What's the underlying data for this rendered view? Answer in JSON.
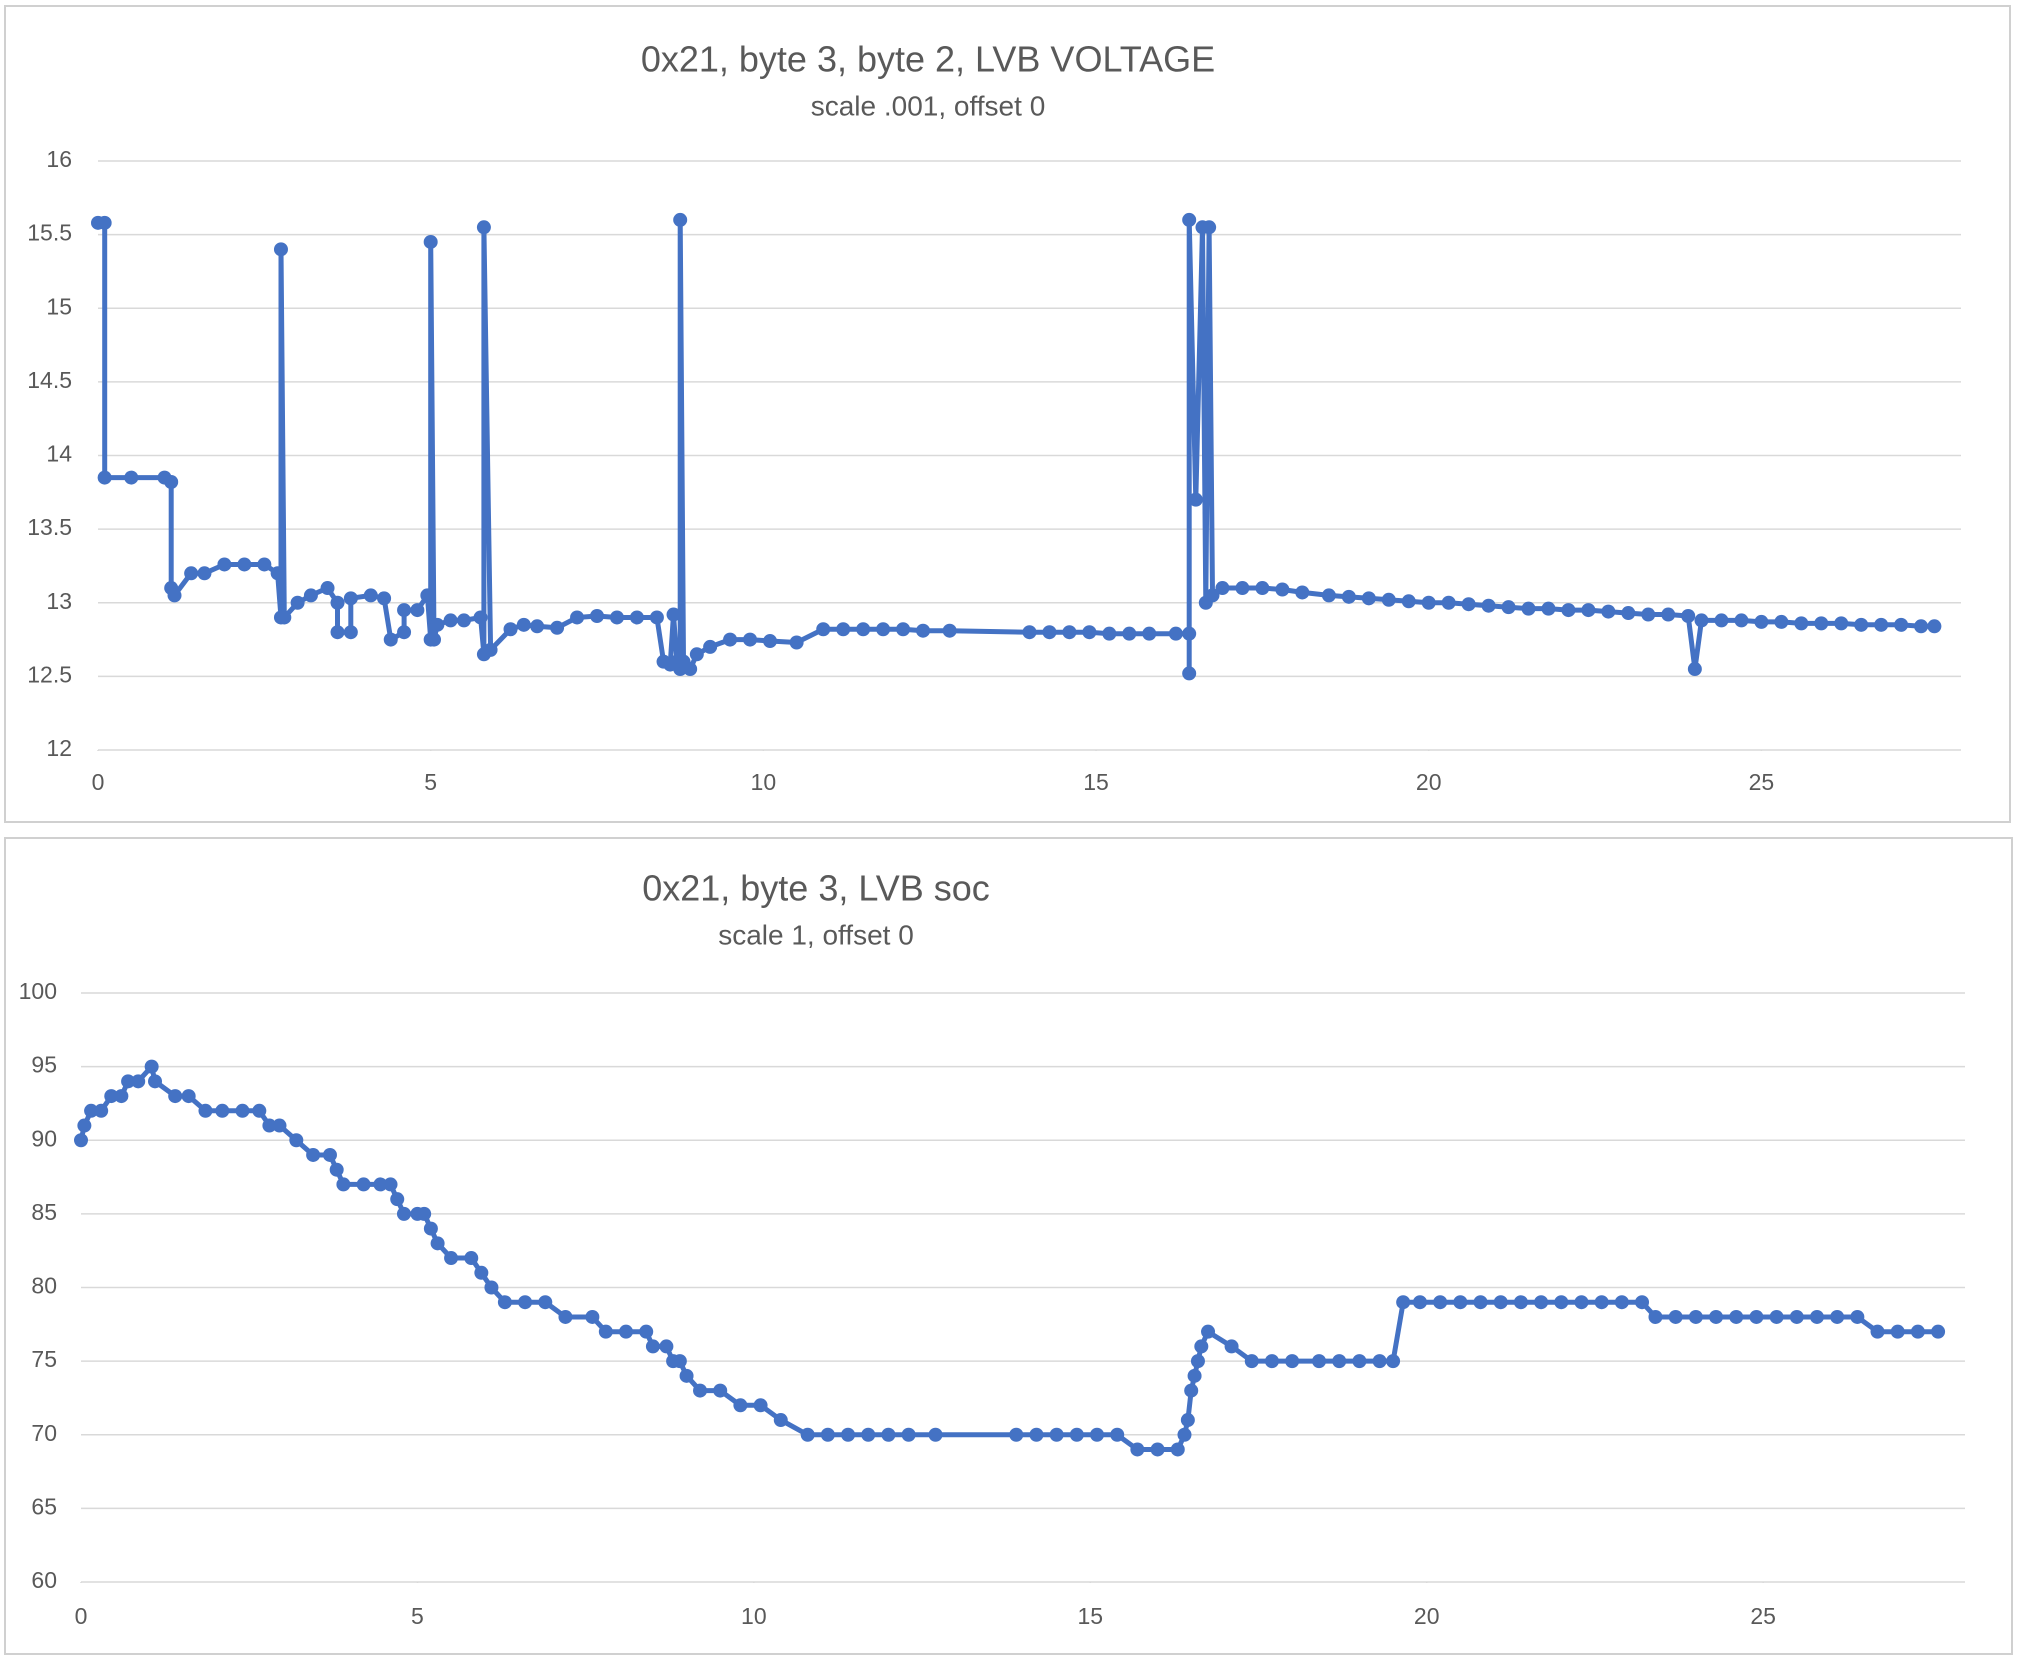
{
  "chart_data": [
    {
      "type": "line",
      "title": "0x21, byte 3, byte 2, LVB VOLTAGE",
      "subtitle": "scale .001, offset 0",
      "xlim": [
        0,
        28
      ],
      "xticks": [
        0,
        5,
        10,
        15,
        20,
        25
      ],
      "ylim": [
        12,
        16
      ],
      "yticks": [
        12,
        12.5,
        13,
        13.5,
        14,
        14.5,
        15,
        15.5,
        16
      ],
      "grid": true,
      "x": [
        0,
        0.1,
        0.1,
        0.5,
        1.0,
        1.1,
        1.1,
        1.15,
        1.4,
        1.6,
        1.9,
        2.2,
        2.5,
        2.7,
        2.75,
        2.75,
        2.8,
        3.0,
        3.2,
        3.45,
        3.6,
        3.6,
        3.8,
        3.8,
        4.1,
        4.3,
        4.4,
        4.6,
        4.6,
        4.8,
        4.95,
        5.0,
        5.0,
        5.05,
        5.1,
        5.3,
        5.5,
        5.75,
        5.8,
        5.8,
        5.9,
        6.2,
        6.4,
        6.6,
        6.9,
        7.2,
        7.5,
        7.8,
        8.1,
        8.4,
        8.5,
        8.6,
        8.65,
        8.7,
        8.75,
        8.75,
        8.8,
        8.9,
        9.0,
        9.2,
        9.5,
        9.8,
        10.1,
        10.5,
        10.9,
        11.2,
        11.5,
        11.8,
        12.1,
        12.4,
        12.8,
        14.0,
        14.3,
        14.6,
        14.9,
        15.2,
        15.5,
        15.8,
        16.2,
        16.4,
        16.4,
        16.4,
        16.5,
        16.6,
        16.65,
        16.7,
        16.75,
        16.9,
        17.2,
        17.5,
        17.8,
        18.1,
        18.5,
        18.8,
        19.1,
        19.4,
        19.7,
        20.0,
        20.3,
        20.6,
        20.9,
        21.2,
        21.5,
        21.8,
        22.1,
        22.4,
        22.7,
        23.0,
        23.3,
        23.6,
        23.9,
        24.0,
        24.1,
        24.4,
        24.7,
        25.0,
        25.3,
        25.6,
        25.9,
        26.2,
        26.5,
        26.8,
        27.1,
        27.4,
        27.6
      ],
      "series": [
        {
          "name": "LVB VOLTAGE",
          "color": "#4472c4",
          "values": [
            15.58,
            15.58,
            13.85,
            13.85,
            13.85,
            13.82,
            13.1,
            13.05,
            13.2,
            13.2,
            13.26,
            13.26,
            13.26,
            13.2,
            12.9,
            15.4,
            12.9,
            13.0,
            13.05,
            13.1,
            13.0,
            12.8,
            12.8,
            13.03,
            13.05,
            13.03,
            12.75,
            12.8,
            12.95,
            12.95,
            13.05,
            12.75,
            15.45,
            12.75,
            12.85,
            12.88,
            12.88,
            12.9,
            12.65,
            15.55,
            12.68,
            12.82,
            12.85,
            12.84,
            12.83,
            12.9,
            12.91,
            12.9,
            12.9,
            12.9,
            12.6,
            12.58,
            12.92,
            12.6,
            12.55,
            15.6,
            12.6,
            12.55,
            12.65,
            12.7,
            12.75,
            12.75,
            12.74,
            12.73,
            12.82,
            12.82,
            12.82,
            12.82,
            12.82,
            12.81,
            12.81,
            12.8,
            12.8,
            12.8,
            12.8,
            12.79,
            12.79,
            12.79,
            12.79,
            12.79,
            12.52,
            15.6,
            13.7,
            15.55,
            13.0,
            15.55,
            13.05,
            13.1,
            13.1,
            13.1,
            13.09,
            13.07,
            13.05,
            13.04,
            13.03,
            13.02,
            13.01,
            13.0,
            13.0,
            12.99,
            12.98,
            12.97,
            12.96,
            12.96,
            12.95,
            12.95,
            12.94,
            12.93,
            12.92,
            12.92,
            12.91,
            12.55,
            12.88,
            12.88,
            12.88,
            12.87,
            12.87,
            12.86,
            12.86,
            12.86,
            12.85,
            12.85,
            12.85,
            12.84,
            12.84
          ]
        }
      ]
    },
    {
      "type": "line",
      "title": "0x21, byte 3, LVB soc",
      "subtitle": "scale 1, offset 0",
      "xlim": [
        0,
        28
      ],
      "xticks": [
        0,
        5,
        10,
        15,
        20,
        25
      ],
      "ylim": [
        60,
        100
      ],
      "yticks": [
        60,
        65,
        70,
        75,
        80,
        85,
        90,
        95,
        100
      ],
      "grid": true,
      "x": [
        0,
        0.05,
        0.15,
        0.3,
        0.45,
        0.6,
        0.7,
        0.85,
        1.05,
        1.1,
        1.4,
        1.6,
        1.85,
        2.1,
        2.4,
        2.65,
        2.8,
        2.95,
        3.2,
        3.45,
        3.7,
        3.8,
        3.9,
        4.2,
        4.45,
        4.6,
        4.7,
        4.8,
        5.0,
        5.1,
        5.2,
        5.3,
        5.5,
        5.8,
        5.95,
        6.1,
        6.3,
        6.6,
        6.9,
        7.2,
        7.6,
        7.8,
        8.1,
        8.4,
        8.5,
        8.7,
        8.8,
        8.9,
        9.0,
        9.2,
        9.5,
        9.8,
        10.1,
        10.4,
        10.8,
        11.1,
        11.4,
        11.7,
        12.0,
        12.3,
        12.7,
        13.9,
        14.2,
        14.5,
        14.8,
        15.1,
        15.4,
        15.7,
        16.0,
        16.3,
        16.4,
        16.45,
        16.5,
        16.55,
        16.6,
        16.65,
        16.75,
        17.1,
        17.4,
        17.7,
        18.0,
        18.4,
        18.7,
        19.0,
        19.3,
        19.5,
        19.65,
        19.9,
        20.2,
        20.5,
        20.8,
        21.1,
        21.4,
        21.7,
        22.0,
        22.3,
        22.6,
        22.9,
        23.2,
        23.4,
        23.7,
        24.0,
        24.3,
        24.6,
        24.9,
        25.2,
        25.5,
        25.8,
        26.1,
        26.4,
        26.7,
        27.0,
        27.3,
        27.6
      ],
      "series": [
        {
          "name": "LVB soc",
          "color": "#4472c4",
          "values": [
            90,
            91,
            92,
            92,
            93,
            93,
            94,
            94,
            95,
            94,
            93,
            93,
            92,
            92,
            92,
            92,
            91,
            91,
            90,
            89,
            89,
            88,
            87,
            87,
            87,
            87,
            86,
            85,
            85,
            85,
            84,
            83,
            82,
            82,
            81,
            80,
            79,
            79,
            79,
            78,
            78,
            77,
            77,
            77,
            76,
            76,
            75,
            75,
            74,
            73,
            73,
            72,
            72,
            71,
            70,
            70,
            70,
            70,
            70,
            70,
            70,
            70,
            70,
            70,
            70,
            70,
            70,
            69,
            69,
            69,
            70,
            71,
            73,
            74,
            75,
            76,
            77,
            76,
            75,
            75,
            75,
            75,
            75,
            75,
            75,
            75,
            79,
            79,
            79,
            79,
            79,
            79,
            79,
            79,
            79,
            79,
            79,
            79,
            79,
            78,
            78,
            78,
            78,
            78,
            78,
            78,
            78,
            78,
            78,
            78,
            77,
            77,
            77,
            77
          ]
        }
      ]
    }
  ]
}
